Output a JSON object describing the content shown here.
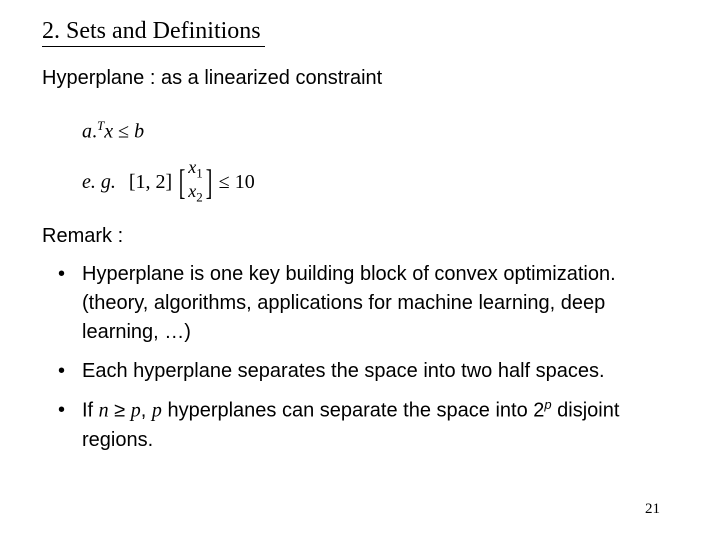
{
  "title": "2. Sets and Definitions",
  "subtitle": "Hyperplane : as a linearized constraint",
  "math": {
    "line1_a": "a",
    "line1_sup": "T",
    "line1_x": "x",
    "line1_op": " ≤ ",
    "line1_b": "b",
    "line2_eg": "e. g.",
    "line2_vec": "[1, 2]",
    "line2_m1a": "x",
    "line2_m1b": "1",
    "line2_m2a": "x",
    "line2_m2b": "2",
    "line2_rhs": " ≤ 10"
  },
  "remark": "Remark :",
  "bullets": {
    "b1": "Hyperplane is one key building block of convex optimization. (theory, algorithms, applications for machine learning, deep learning, …)",
    "b2": "Each hyperplane separates the space into two half spaces.",
    "b3_pre": "If ",
    "b3_n": "n",
    "b3_geq": " ≥ ",
    "b3_p1": "p",
    "b3_mid": ", ",
    "b3_p2": "p",
    "b3_mid2": " hyperplanes can separate the space into ",
    "b3_two": "2",
    "b3_pexp": "p",
    "b3_end": " disjoint regions."
  },
  "pagenum": "21"
}
